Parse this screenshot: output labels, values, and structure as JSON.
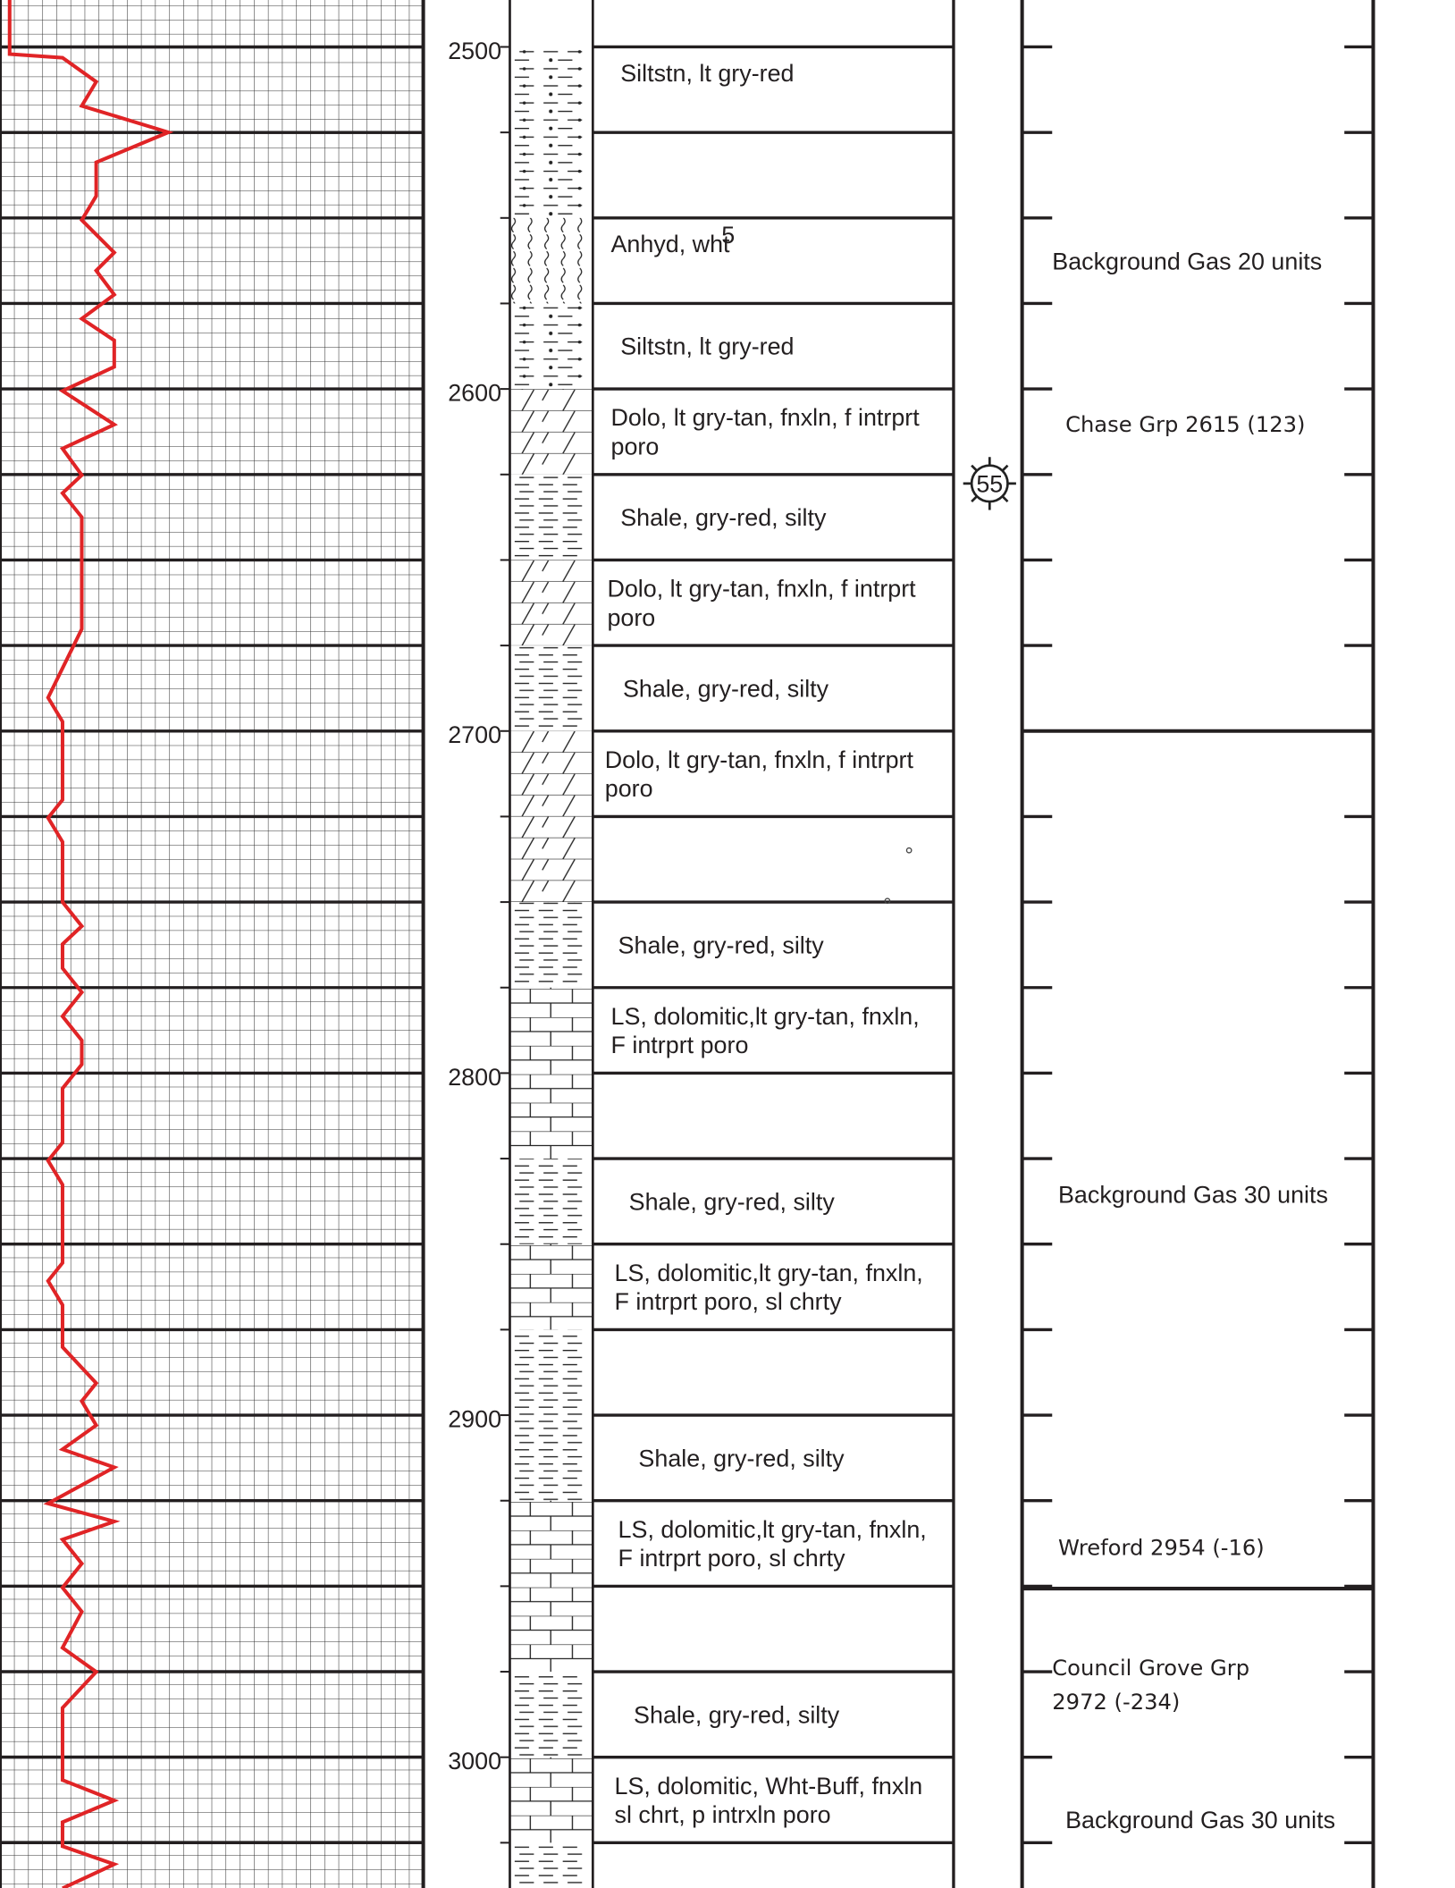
{
  "depth_labels": [
    "2500",
    "2600",
    "2700",
    "2800",
    "2900",
    "3000"
  ],
  "descriptions": [
    [
      "Siltstn, lt gry-red"
    ],
    null,
    [
      "Anhyd, wht"
    ],
    [
      "Siltstn, lt gry-red"
    ],
    [
      "Dolo, lt gry-tan, fnxln, f intrprt",
      "poro"
    ],
    [
      "Shale, gry-red, silty"
    ],
    [
      "Dolo, lt gry-tan, fnxln, f intrprt",
      "poro"
    ],
    [
      "Shale, gry-red, silty"
    ],
    [
      "Dolo, lt gry-tan, fnxln, f intrprt",
      "poro"
    ],
    null,
    [
      "Shale, gry-red, silty"
    ],
    [
      "LS, dolomitic,lt gry-tan, fnxln,",
      "F intrprt poro"
    ],
    null,
    [
      "Shale, gry-red, silty"
    ],
    [
      "LS, dolomitic,lt gry-tan, fnxln,",
      "F intrprt poro, sl chrty"
    ],
    null,
    [
      "Shale, gry-red, silty"
    ],
    [
      "LS, dolomitic,lt gry-tan, fnxln,",
      "F intrprt poro, sl chrty"
    ],
    null,
    [
      "Shale, gry-red, silty"
    ],
    [
      "LS, dolomitic, Wht-Buff, fnxln",
      "sl chrt, p intrxln poro"
    ]
  ],
  "stray_mark": "5",
  "symbol_label": "55",
  "remarks": [
    [
      "Background Gas 20 units"
    ],
    [
      "Chase Grp 2615 (123)"
    ],
    [
      "Background Gas 30 units"
    ],
    [
      "Wreford 2954 (-16)"
    ],
    [
      "Council Grove Grp",
      "2972 (-234)"
    ],
    [
      "Background Gas 30 units"
    ]
  ]
}
